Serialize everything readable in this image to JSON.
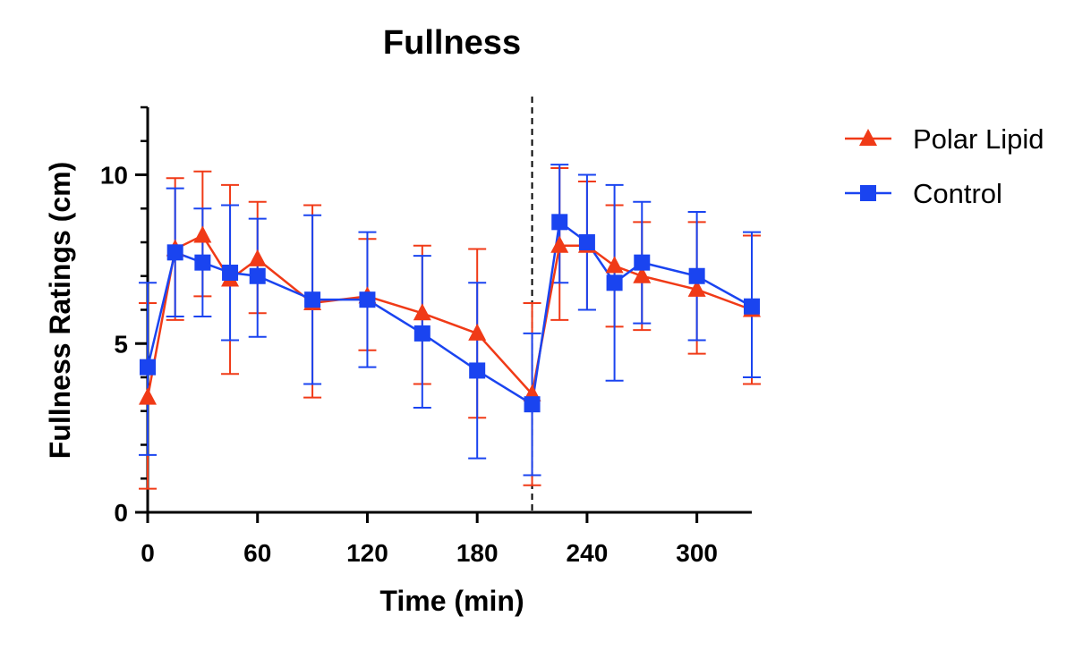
{
  "chart_data": {
    "type": "line",
    "title": "Fullness",
    "xlabel": "Time (min)",
    "ylabel": "Fullness Ratings (cm)",
    "xlim": [
      0,
      330
    ],
    "ylim": [
      0,
      12
    ],
    "xticks": [
      0,
      60,
      120,
      180,
      240,
      300
    ],
    "xtick_labels": [
      "0",
      "60",
      "120",
      "180",
      "240",
      "300"
    ],
    "yticks": [
      0,
      5,
      10
    ],
    "ytick_labels": [
      "0",
      "5",
      "10"
    ],
    "grid": false,
    "legend_position": "right",
    "reference_line": {
      "x": 210,
      "style": "dashed"
    },
    "series": [
      {
        "name": "Polar Lipid",
        "color": "#f03a17",
        "marker": "triangle",
        "x": [
          0,
          15,
          30,
          45,
          60,
          90,
          120,
          150,
          180,
          210,
          225,
          240,
          255,
          270,
          300,
          330
        ],
        "y": [
          3.4,
          7.8,
          8.2,
          6.9,
          7.5,
          6.2,
          6.4,
          5.9,
          5.3,
          3.5,
          7.9,
          7.9,
          7.3,
          7.0,
          6.6,
          6.0
        ],
        "err_low": [
          0.7,
          5.7,
          6.4,
          4.1,
          5.9,
          3.4,
          4.8,
          3.8,
          2.8,
          0.8,
          5.7,
          6.0,
          5.5,
          5.4,
          4.7,
          3.8
        ],
        "err_high": [
          6.2,
          9.9,
          10.1,
          9.7,
          9.2,
          9.1,
          8.1,
          7.9,
          7.8,
          6.2,
          10.2,
          9.8,
          9.1,
          8.6,
          8.6,
          8.2
        ]
      },
      {
        "name": "Control",
        "color": "#1a44f0",
        "marker": "square",
        "x": [
          0,
          15,
          30,
          45,
          60,
          90,
          120,
          150,
          180,
          210,
          225,
          240,
          255,
          270,
          300,
          330
        ],
        "y": [
          4.3,
          7.7,
          7.4,
          7.1,
          7.0,
          6.3,
          6.3,
          5.3,
          4.2,
          3.2,
          8.6,
          8.0,
          6.8,
          7.4,
          7.0,
          6.1
        ],
        "err_low": [
          1.7,
          5.8,
          5.8,
          5.1,
          5.2,
          3.8,
          4.3,
          3.1,
          1.6,
          1.1,
          6.8,
          6.0,
          3.9,
          5.6,
          5.1,
          4.0
        ],
        "err_high": [
          6.8,
          9.6,
          9.0,
          9.1,
          8.7,
          8.8,
          8.3,
          7.6,
          6.8,
          5.3,
          10.3,
          10.0,
          9.7,
          9.2,
          8.9,
          8.3
        ]
      }
    ]
  }
}
